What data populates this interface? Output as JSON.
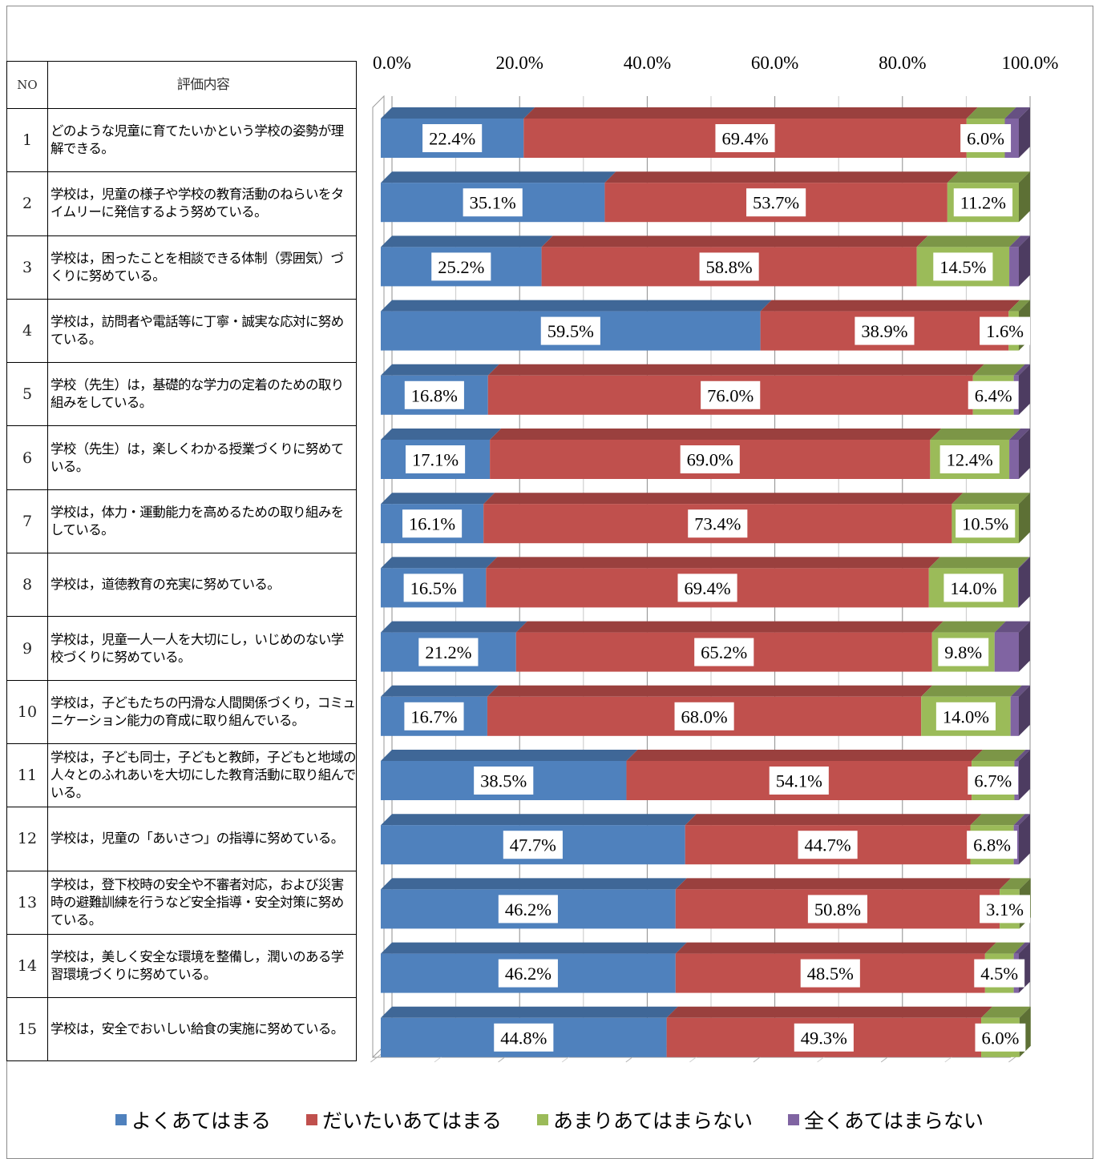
{
  "table": {
    "header_no": "NO",
    "header_content": "評価内容",
    "rows": [
      {
        "no": "1",
        "text": "どのような児童に育てたいかという学校の姿勢が理解できる。"
      },
      {
        "no": "2",
        "text": "学校は，児童の様子や学校の教育活動のねらいをタイムリーに発信するよう努めている。"
      },
      {
        "no": "3",
        "text": "学校は，困ったことを相談できる体制（雰囲気）づくりに努めている。"
      },
      {
        "no": "4",
        "text": "学校は，訪問者や電話等に丁寧・誠実な応対に努めている。"
      },
      {
        "no": "5",
        "text": "学校（先生）は，基礎的な学力の定着のための取り組みをしている。"
      },
      {
        "no": "6",
        "text": "学校（先生）は，楽しくわかる授業づくりに努めている。"
      },
      {
        "no": "7",
        "text": "学校は，体力・運動能力を高めるための取り組みをしている。"
      },
      {
        "no": "8",
        "text": "学校は，道徳教育の充実に努めている。"
      },
      {
        "no": "9",
        "text": "学校は，児童一人一人を大切にし，いじめのない学校づくりに努めている。"
      },
      {
        "no": "10",
        "text": "学校は，子どもたちの円滑な人間関係づくり，コミュニケーション能力の育成に取り組んでいる。"
      },
      {
        "no": "11",
        "text": "学校は，子ども同士，子どもと教師，子どもと地域の人々とのふれあいを大切にした教育活動に取り組んでいる。"
      },
      {
        "no": "12",
        "text": "学校は，児童の「あいさつ」の指導に努めている。"
      },
      {
        "no": "13",
        "text": "学校は，登下校時の安全や不審者対応，および災害時の避難訓練を行うなど安全指導・安全対策に努めている。"
      },
      {
        "no": "14",
        "text": "学校は，美しく安全な環境を整備し，潤いのある学習環境づくりに努めている。"
      },
      {
        "no": "15",
        "text": "学校は，安全でおいしい給食の実施に努めている。"
      }
    ]
  },
  "chart_data": {
    "type": "bar",
    "orientation": "horizontal",
    "stacked": "percent",
    "style": "3d",
    "categories": [
      "1",
      "2",
      "3",
      "4",
      "5",
      "6",
      "7",
      "8",
      "9",
      "10",
      "11",
      "12",
      "13",
      "14",
      "15"
    ],
    "xticks": [
      "0.0%",
      "20.0%",
      "40.0%",
      "60.0%",
      "80.0%",
      "100.0%"
    ],
    "xlim": [
      0,
      100
    ],
    "grid": true,
    "legend_position": "bottom",
    "series": [
      {
        "name": "よくあてはまる",
        "color": "#4F81BD",
        "values": [
          22.4,
          35.1,
          25.2,
          59.5,
          16.8,
          17.1,
          16.1,
          16.5,
          21.2,
          16.7,
          38.5,
          47.7,
          46.2,
          46.2,
          44.8
        ]
      },
      {
        "name": "だいたいあてはまる",
        "color": "#C0504D",
        "values": [
          69.4,
          53.7,
          58.8,
          38.9,
          76.0,
          69.0,
          73.4,
          69.4,
          65.2,
          68.0,
          54.1,
          44.7,
          50.8,
          48.5,
          49.3
        ]
      },
      {
        "name": "あまりあてはまらない",
        "color": "#9BBB59",
        "values": [
          6.0,
          11.2,
          14.5,
          1.6,
          6.4,
          12.4,
          10.5,
          14.0,
          9.8,
          14.0,
          6.7,
          6.8,
          3.1,
          4.5,
          6.0
        ]
      },
      {
        "name": "全くあてはまらない",
        "color": "#8064A2",
        "values": [
          2.2,
          0,
          1.5,
          0,
          0.8,
          1.5,
          0,
          0.1,
          3.8,
          1.3,
          0.7,
          0.8,
          0,
          0.8,
          0
        ]
      }
    ],
    "data_labels": [
      [
        "22.4%",
        "69.4%",
        "6.0%"
      ],
      [
        "35.1%",
        "53.7%",
        "11.2%"
      ],
      [
        "25.2%",
        "58.8%",
        "14.5%"
      ],
      [
        "59.5%",
        "38.9%",
        "1.6%"
      ],
      [
        "16.8%",
        "76.0%",
        "6.4%"
      ],
      [
        "17.1%",
        "69.0%",
        "12.4%"
      ],
      [
        "16.1%",
        "73.4%",
        "10.5%"
      ],
      [
        "16.5%",
        "69.4%",
        "14.0%"
      ],
      [
        "21.2%",
        "65.2%",
        "9.8%"
      ],
      [
        "16.7%",
        "68.0%",
        "14.0%"
      ],
      [
        "38.5%",
        "54.1%",
        "6.7%"
      ],
      [
        "47.7%",
        "44.7%",
        "6.8%"
      ],
      [
        "46.2%",
        "50.8%",
        "3.1%"
      ],
      [
        "46.2%",
        "48.5%",
        "4.5%"
      ],
      [
        "44.8%",
        "49.3%",
        "6.0%"
      ]
    ]
  }
}
